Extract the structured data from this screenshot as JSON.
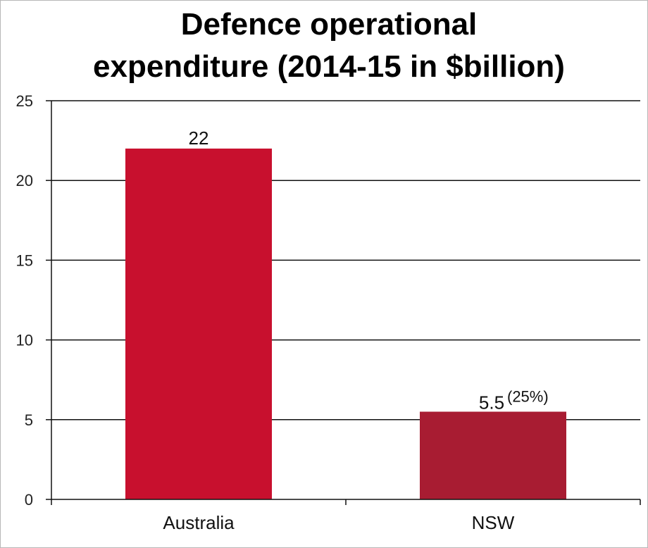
{
  "chart_data": {
    "type": "bar",
    "title_lines": [
      "Defence operational",
      "expenditure (2014-15 in $billion)"
    ],
    "categories": [
      "Australia",
      "NSW"
    ],
    "values": [
      22,
      5.5
    ],
    "value_labels": [
      "22",
      "5.5"
    ],
    "value_notes": [
      "",
      "(25%)"
    ],
    "bar_colors": [
      "#c8102e",
      "#a81c32"
    ],
    "ylim": [
      0,
      25
    ],
    "yticks": [
      0,
      5,
      10,
      15,
      20,
      25
    ],
    "ytick_labels": [
      "0",
      "5",
      "10",
      "15",
      "20",
      "25"
    ],
    "grid": true,
    "legend": "none"
  }
}
